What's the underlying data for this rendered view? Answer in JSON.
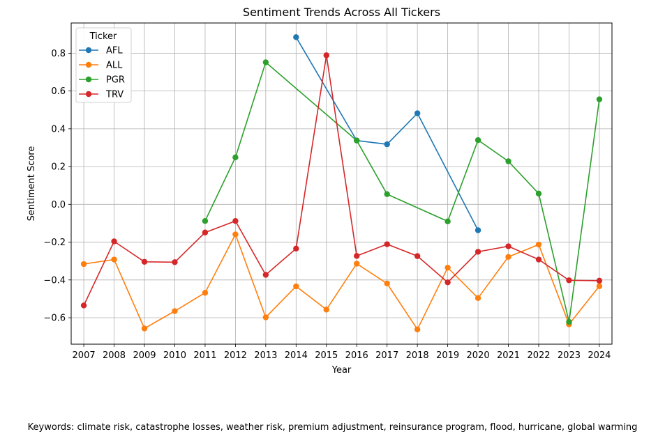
{
  "chart_data": {
    "type": "line",
    "title": "Sentiment Trends Across All Tickers",
    "xlabel": "Year",
    "ylabel": "Sentiment Score",
    "categories": [
      "2007",
      "2008",
      "2009",
      "2010",
      "2011",
      "2012",
      "2013",
      "2014",
      "2015",
      "2016",
      "2017",
      "2018",
      "2019",
      "2020",
      "2021",
      "2022",
      "2023",
      "2024"
    ],
    "ylim": [
      -0.74,
      0.96
    ],
    "yticks": [
      "-0.6",
      "-0.4",
      "-0.2",
      "0.0",
      "0.2",
      "0.4",
      "0.6",
      "0.8"
    ],
    "grid": true,
    "legend": {
      "title": "Ticker",
      "placement": "top-left"
    },
    "series": [
      {
        "name": "AFL",
        "color": "#1f77b4",
        "points": [
          [
            "2014",
            0.885
          ],
          [
            "2016",
            0.338
          ],
          [
            "2017",
            0.318
          ],
          [
            "2018",
            0.482
          ],
          [
            "2020",
            -0.137
          ]
        ]
      },
      {
        "name": "ALL",
        "color": "#ff7f0e",
        "points": [
          [
            "2007",
            -0.316
          ],
          [
            "2008",
            -0.292
          ],
          [
            "2009",
            -0.657
          ],
          [
            "2010",
            -0.565
          ],
          [
            "2011",
            -0.468
          ],
          [
            "2012",
            -0.159
          ],
          [
            "2013",
            -0.598
          ],
          [
            "2014",
            -0.434
          ],
          [
            "2015",
            -0.557
          ],
          [
            "2016",
            -0.314
          ],
          [
            "2017",
            -0.419
          ],
          [
            "2018",
            -0.662
          ],
          [
            "2019",
            -0.335
          ],
          [
            "2020",
            -0.496
          ],
          [
            "2021",
            -0.278
          ],
          [
            "2022",
            -0.213
          ],
          [
            "2023",
            -0.635
          ],
          [
            "2024",
            -0.433
          ]
        ]
      },
      {
        "name": "PGR",
        "color": "#2ca02c",
        "points": [
          [
            "2011",
            -0.088
          ],
          [
            "2012",
            0.249
          ],
          [
            "2013",
            0.752
          ],
          [
            "2016",
            0.338
          ],
          [
            "2017",
            0.054
          ],
          [
            "2019",
            -0.09
          ],
          [
            "2020",
            0.34
          ],
          [
            "2021",
            0.228
          ],
          [
            "2022",
            0.057
          ],
          [
            "2023",
            -0.622
          ],
          [
            "2024",
            0.556
          ]
        ]
      },
      {
        "name": "TRV",
        "color": "#d62728",
        "points": [
          [
            "2007",
            -0.535
          ],
          [
            "2008",
            -0.196
          ],
          [
            "2009",
            -0.304
          ],
          [
            "2010",
            -0.306
          ],
          [
            "2011",
            -0.149
          ],
          [
            "2012",
            -0.088
          ],
          [
            "2013",
            -0.373
          ],
          [
            "2014",
            -0.234
          ],
          [
            "2015",
            0.789
          ],
          [
            "2016",
            -0.273
          ],
          [
            "2017",
            -0.211
          ],
          [
            "2018",
            -0.274
          ],
          [
            "2019",
            -0.413
          ],
          [
            "2020",
            -0.251
          ],
          [
            "2021",
            -0.222
          ],
          [
            "2022",
            -0.292
          ],
          [
            "2023",
            -0.402
          ],
          [
            "2024",
            -0.404
          ]
        ]
      }
    ]
  },
  "caption": "Keywords: climate risk, catastrophe losses, weather risk, premium adjustment, reinsurance program, flood, hurricane, global warming"
}
